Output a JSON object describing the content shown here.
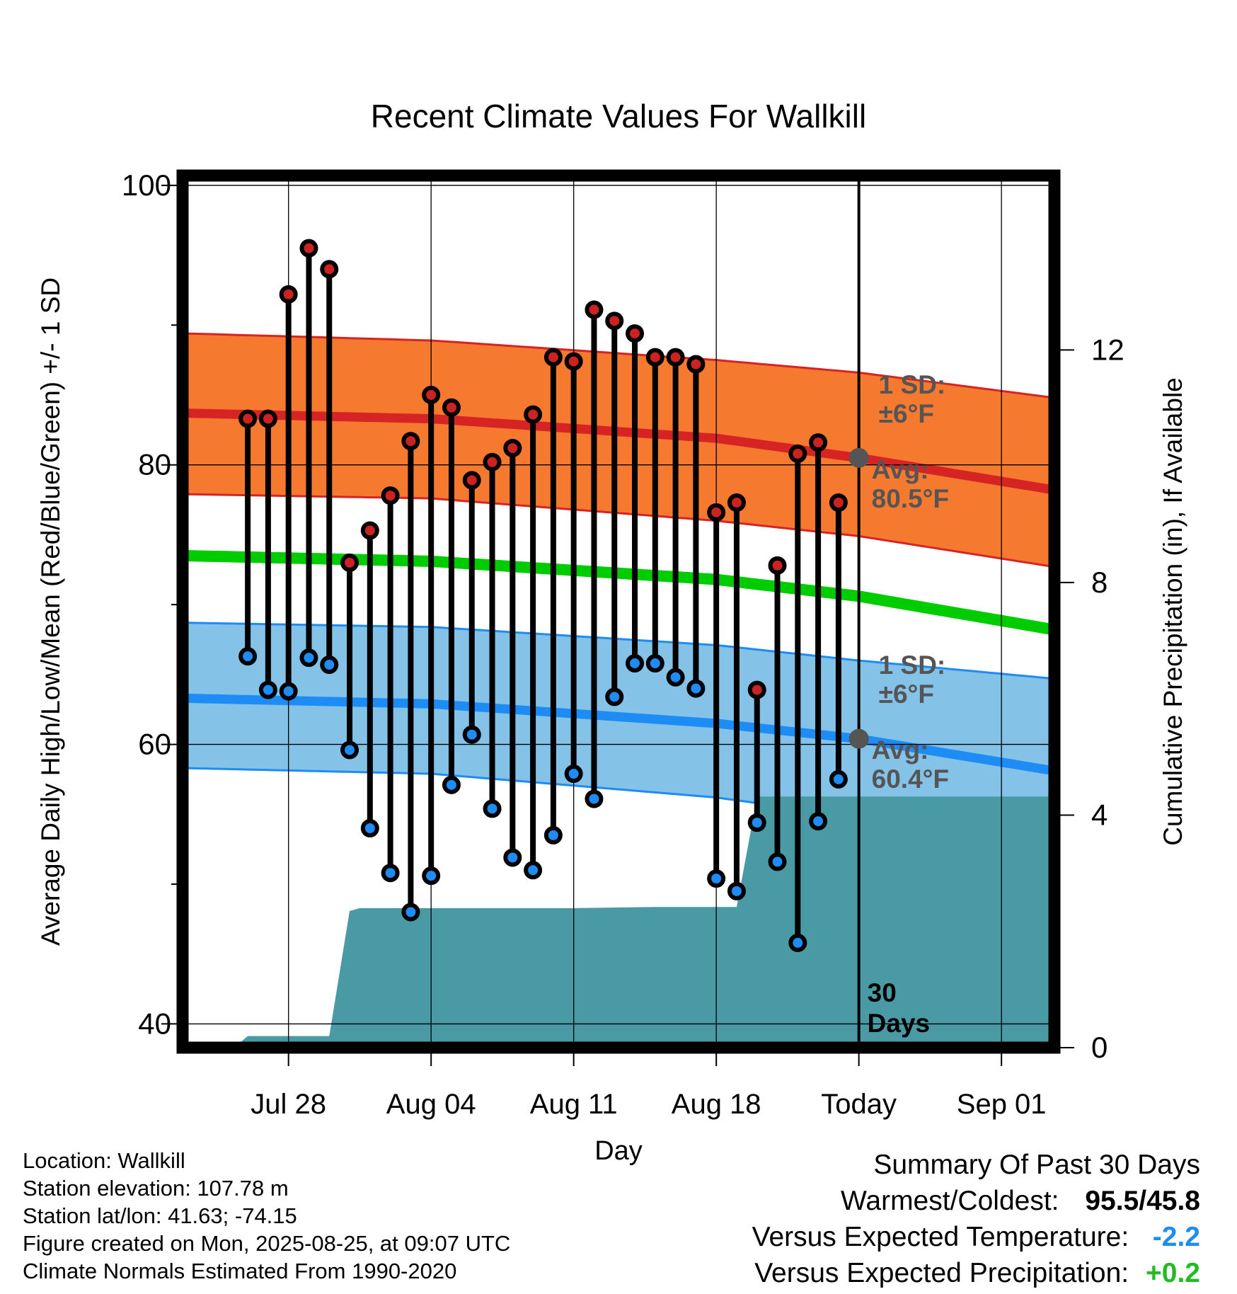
{
  "title": "Recent Climate Values For Wallkill",
  "colors": {
    "high_band": "#f57a30",
    "high_edge": "#d62424",
    "high_avg": "#d62424",
    "low_band": "#84c2e8",
    "low_edge": "#1e8cf5",
    "low_avg": "#1e8cf5",
    "mean_line": "#00cc00",
    "precip": "#4a9aa5",
    "high_dot": "#cc2222",
    "low_dot": "#1e8cf5",
    "today_marker": "#555555",
    "annotation": "#555555"
  },
  "chart_data": {
    "type": "line",
    "title": "Recent Climate Values For Wallkill",
    "xlabel": "Day",
    "ylabel": "Average Daily High/Low/Mean (Red/Blue/Green) +/- 1 SD",
    "y2label": "Cumulative Precipitation (in), If Available",
    "x_day_range": [
      -33.2,
      9.6
    ],
    "ylim": [
      38.3,
      100.7
    ],
    "y2lim": [
      0,
      15
    ],
    "x_ticks": [
      {
        "day": -28,
        "label": "Jul 28"
      },
      {
        "day": -21,
        "label": "Aug 04"
      },
      {
        "day": -14,
        "label": "Aug 11"
      },
      {
        "day": -7,
        "label": "Aug 18"
      },
      {
        "day": 0,
        "label": "Today"
      },
      {
        "day": 7,
        "label": "Sep 01"
      }
    ],
    "y_ticks": [
      40,
      60,
      80,
      100
    ],
    "y2_ticks": [
      0,
      4,
      8,
      12
    ],
    "grid": true,
    "normals": {
      "days": [
        -33,
        -21,
        -7,
        0,
        9.6
      ],
      "high_avg": [
        83.7,
        83.3,
        81.9,
        80.5,
        78.2
      ],
      "high_upper": [
        89.4,
        88.9,
        87.5,
        86.6,
        84.8
      ],
      "high_lower": [
        77.9,
        77.6,
        76.0,
        74.9,
        72.7
      ],
      "mean": [
        73.5,
        73.1,
        71.8,
        70.6,
        68.2
      ],
      "low_avg": [
        63.3,
        62.9,
        61.5,
        60.4,
        58.1
      ],
      "low_upper": [
        68.7,
        68.4,
        67.1,
        66.0,
        64.7
      ],
      "low_lower": [
        58.3,
        57.9,
        56.2,
        54.8,
        52.3
      ]
    },
    "series": [
      {
        "name": "High",
        "days": [
          -30,
          -29,
          -28,
          -27,
          -26,
          -25,
          -24,
          -23,
          -22,
          -21,
          -20,
          -19,
          -18,
          -17,
          -16,
          -15,
          -14,
          -13,
          -12,
          -11,
          -10,
          -9,
          -8,
          -7,
          -6,
          -5,
          -4,
          -3,
          -2,
          -1
        ],
        "values": [
          83.3,
          83.3,
          92.2,
          95.5,
          94.0,
          73.0,
          75.3,
          77.8,
          81.7,
          85.0,
          84.1,
          78.9,
          80.2,
          81.2,
          83.6,
          87.7,
          87.4,
          91.1,
          90.3,
          89.4,
          87.7,
          87.7,
          87.2,
          76.6,
          77.3,
          63.9,
          72.8,
          80.8,
          81.6,
          77.3
        ]
      },
      {
        "name": "Low",
        "days": [
          -30,
          -29,
          -28,
          -27,
          -26,
          -25,
          -24,
          -23,
          -22,
          -21,
          -20,
          -19,
          -18,
          -17,
          -16,
          -15,
          -14,
          -13,
          -12,
          -11,
          -10,
          -9,
          -8,
          -7,
          -6,
          -5,
          -4,
          -3,
          -2,
          -1
        ],
        "values": [
          66.3,
          63.9,
          63.8,
          66.2,
          65.7,
          59.6,
          54.0,
          50.8,
          48.0,
          50.6,
          57.1,
          60.7,
          55.4,
          51.9,
          51.0,
          53.5,
          57.9,
          56.1,
          63.4,
          65.8,
          65.8,
          64.8,
          64.0,
          50.4,
          49.5,
          54.4,
          51.6,
          45.8,
          54.5,
          57.5
        ]
      },
      {
        "name": "Precipitation",
        "days": [
          -30.5,
          -30,
          -29.5,
          -27,
          -26,
          -25,
          -24.5,
          -21,
          -17,
          -15,
          -14,
          -10,
          -6,
          -5,
          -4.9,
          9.6
        ],
        "values": [
          0.05,
          0.2,
          0.2,
          0.2,
          0.2,
          2.35,
          2.4,
          2.4,
          2.4,
          2.4,
          2.4,
          2.42,
          2.42,
          4.3,
          4.32,
          4.32
        ]
      }
    ],
    "annotations": {
      "high_sd_label": "1 SD:",
      "high_sd_value": "±6°F",
      "high_avg_label": "Avg:",
      "high_avg_value": "80.5°F",
      "low_sd_label": "1 SD:",
      "low_sd_value": "±6°F",
      "low_avg_label": "Avg:",
      "low_avg_value": "60.4°F",
      "window_label_1": "30",
      "window_label_2": "Days"
    }
  },
  "info": {
    "location": "Location: Wallkill",
    "elevation": "Station elevation: 107.78 m",
    "latlon": "Station lat/lon: 41.63; -74.15",
    "created": "Figure created on Mon, 2025-08-25, at 09:07 UTC",
    "normals": "Climate Normals Estimated From 1990-2020"
  },
  "summary": {
    "heading": "Summary Of Past 30 Days",
    "warmcold_label": "Warmest/Coldest:",
    "warmcold_value": "95.5/45.8",
    "temp_label": "Versus Expected Temperature:",
    "temp_value": "-2.2",
    "temp_color": "#1e8cf5",
    "precip_label": "Versus Expected Precipitation:",
    "precip_value": "+0.2",
    "precip_color": "#22bb22"
  }
}
